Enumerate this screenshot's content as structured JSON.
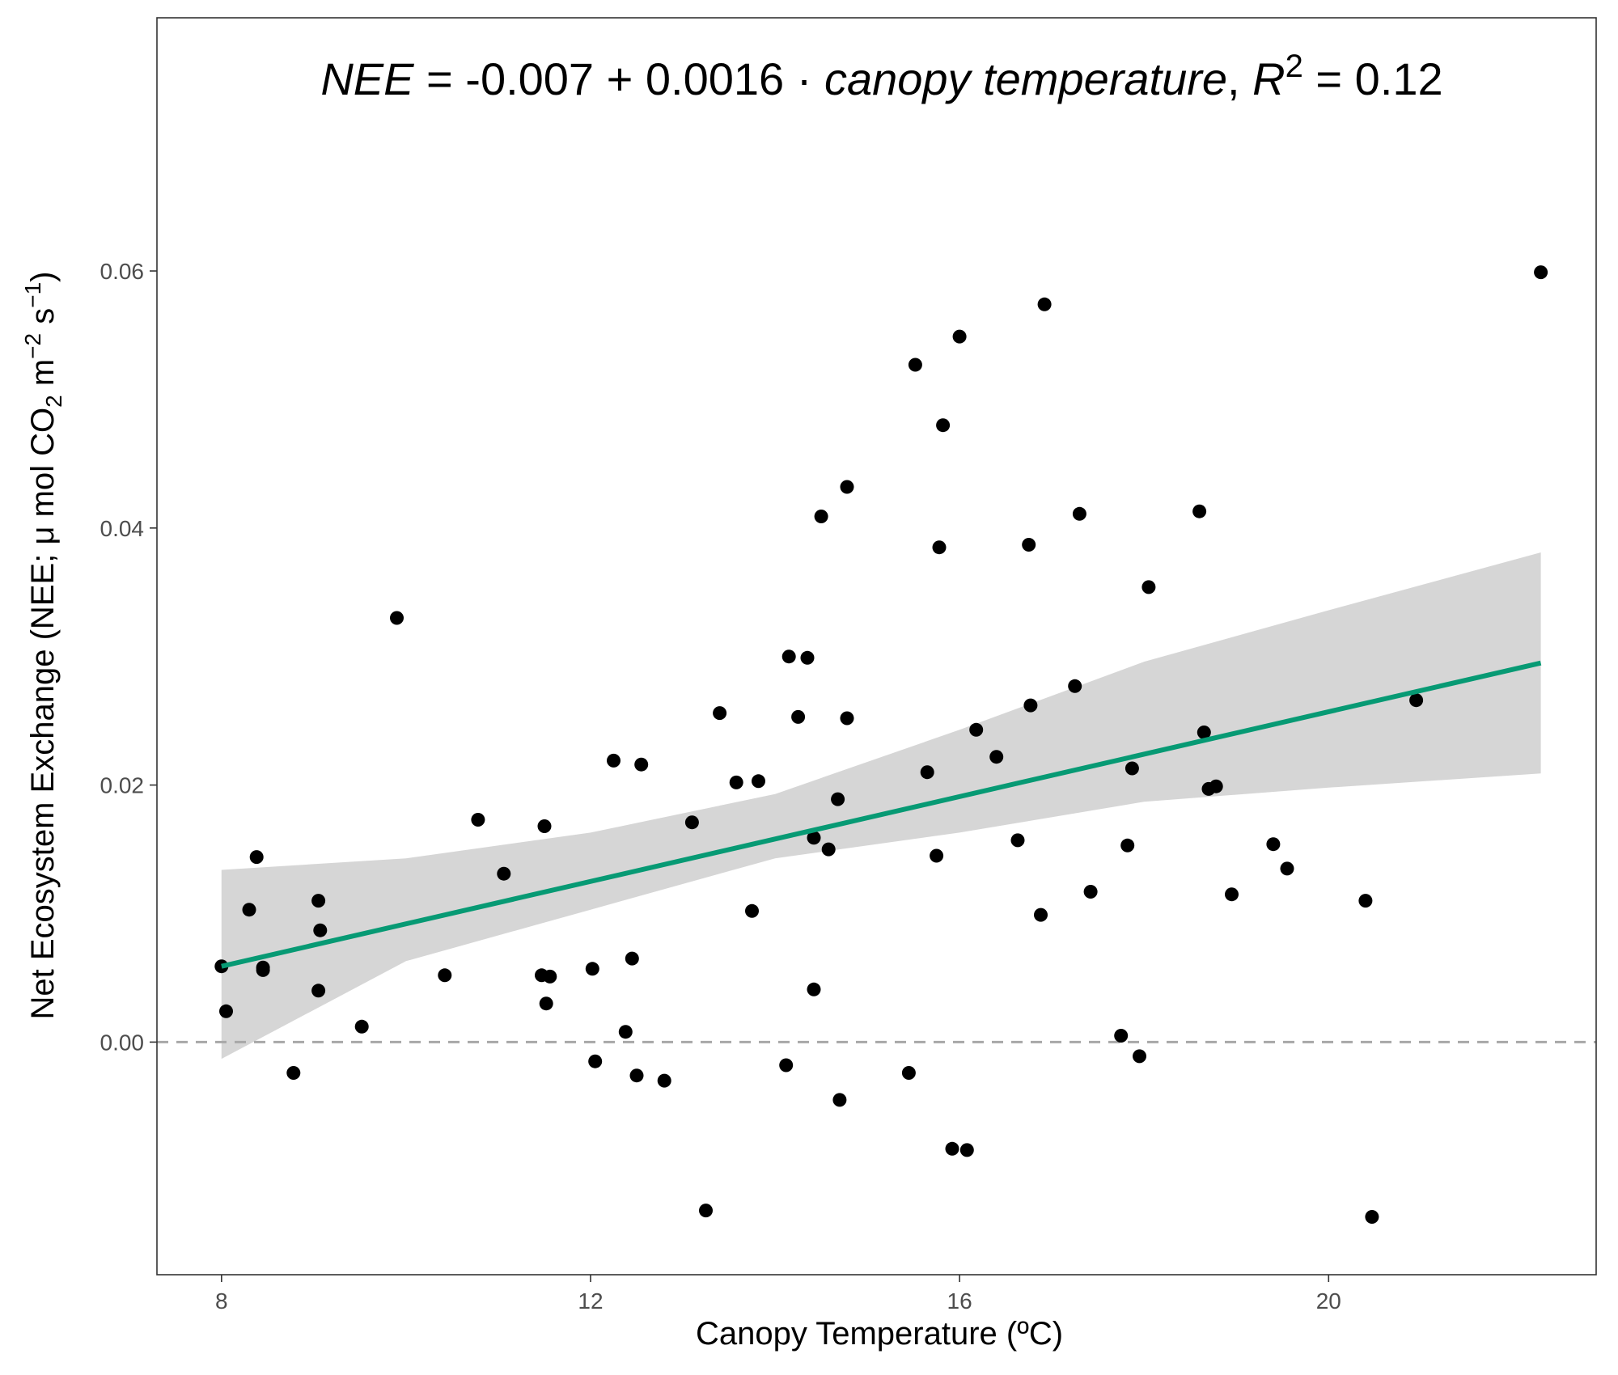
{
  "chart_data": {
    "type": "scatter",
    "annotation": {
      "nee": "NEE",
      "eq": " = -0.007 + 0.0016 · ",
      "canopy": "canopy temperature",
      "sep": ",  ",
      "r": "R",
      "r_sup": "2",
      "r_val": " = 0.12"
    },
    "xlabel": "Canopy Temperature (ºC)",
    "ylabel": {
      "main": "Net Ecosystem Exchange (NEE; μ mol CO",
      "sub2": "2",
      "m": " m",
      "sup_m2": "−2",
      "s": " s",
      "sup_m1": "−1",
      "close": ")"
    },
    "xlim": [
      7.3,
      22.9
    ],
    "ylim": [
      -0.0181,
      0.0797
    ],
    "x_ticks": [
      8,
      12,
      16,
      20
    ],
    "x_tick_labels": [
      "8",
      "12",
      "16",
      "20"
    ],
    "y_ticks": [
      0.0,
      0.02,
      0.04,
      0.06
    ],
    "y_tick_labels": [
      "0.00",
      "0.02",
      "0.04",
      "0.06"
    ],
    "grid": false,
    "reference_line": {
      "y": 0.0,
      "style": "dashed",
      "color": "#a8a8a8"
    },
    "fit": {
      "x_range": [
        8.0,
        22.3
      ],
      "line": [
        [
          8.0,
          0.0059
        ],
        [
          22.3,
          0.0295
        ]
      ],
      "ci_upper": [
        [
          8.0,
          0.0134
        ],
        [
          10.0,
          0.0143
        ],
        [
          12.0,
          0.0163
        ],
        [
          14.0,
          0.0193
        ],
        [
          16.0,
          0.0243
        ],
        [
          18.0,
          0.0296
        ],
        [
          20.0,
          0.0336
        ],
        [
          22.3,
          0.0381
        ]
      ],
      "ci_lower": [
        [
          8.0,
          -0.0013
        ],
        [
          10.0,
          0.0063
        ],
        [
          12.0,
          0.0103
        ],
        [
          14.0,
          0.0143
        ],
        [
          16.0,
          0.0163
        ],
        [
          18.0,
          0.0187
        ],
        [
          20.0,
          0.0198
        ],
        [
          22.3,
          0.0209
        ]
      ],
      "line_color": "#079a74",
      "band_color": "#d6d6d6"
    },
    "point_color": "#000000",
    "points": [
      [
        8.0,
        0.0059
      ],
      [
        8.05,
        0.0024
      ],
      [
        8.3,
        0.0103
      ],
      [
        8.38,
        0.0144
      ],
      [
        8.45,
        0.0058
      ],
      [
        8.45,
        0.0056
      ],
      [
        8.78,
        -0.0024
      ],
      [
        9.05,
        0.011
      ],
      [
        9.07,
        0.0087
      ],
      [
        9.05,
        0.004
      ],
      [
        9.52,
        0.0012
      ],
      [
        9.9,
        0.033
      ],
      [
        10.42,
        0.0052
      ],
      [
        10.78,
        0.0173
      ],
      [
        11.06,
        0.0131
      ],
      [
        11.47,
        0.0052
      ],
      [
        11.5,
        0.0168
      ],
      [
        11.52,
        0.003
      ],
      [
        11.56,
        0.0051
      ],
      [
        12.02,
        0.0057
      ],
      [
        12.05,
        -0.0015
      ],
      [
        12.25,
        0.0219
      ],
      [
        12.38,
        0.0008
      ],
      [
        12.45,
        0.0065
      ],
      [
        12.5,
        -0.0026
      ],
      [
        12.55,
        0.0216
      ],
      [
        12.8,
        -0.003
      ],
      [
        13.1,
        0.0171
      ],
      [
        13.25,
        -0.0131
      ],
      [
        13.4,
        0.0256
      ],
      [
        13.58,
        0.0202
      ],
      [
        13.75,
        0.0102
      ],
      [
        13.82,
        0.0203
      ],
      [
        14.12,
        -0.0018
      ],
      [
        14.15,
        0.03
      ],
      [
        14.25,
        0.0253
      ],
      [
        14.35,
        0.0299
      ],
      [
        14.42,
        0.0159
      ],
      [
        14.42,
        0.0041
      ],
      [
        14.5,
        0.0409
      ],
      [
        14.58,
        0.015
      ],
      [
        14.68,
        0.0189
      ],
      [
        14.7,
        -0.0045
      ],
      [
        14.78,
        0.0432
      ],
      [
        14.78,
        0.0252
      ],
      [
        15.45,
        -0.0024
      ],
      [
        15.52,
        0.0527
      ],
      [
        15.65,
        0.021
      ],
      [
        15.75,
        0.0145
      ],
      [
        15.78,
        0.0385
      ],
      [
        15.82,
        0.048
      ],
      [
        15.92,
        -0.0083
      ],
      [
        16.0,
        0.0549
      ],
      [
        16.08,
        -0.0084
      ],
      [
        16.18,
        0.0243
      ],
      [
        16.4,
        0.0222
      ],
      [
        16.63,
        0.0157
      ],
      [
        16.75,
        0.0387
      ],
      [
        16.77,
        0.0262
      ],
      [
        16.88,
        0.0099
      ],
      [
        16.92,
        0.0574
      ],
      [
        17.25,
        0.0277
      ],
      [
        17.3,
        0.0411
      ],
      [
        17.42,
        0.0117
      ],
      [
        17.75,
        0.0005
      ],
      [
        17.82,
        0.0153
      ],
      [
        17.87,
        0.0213
      ],
      [
        17.95,
        -0.0011
      ],
      [
        18.05,
        0.0354
      ],
      [
        18.6,
        0.0413
      ],
      [
        18.65,
        0.0241
      ],
      [
        18.7,
        0.0197
      ],
      [
        18.78,
        0.0199
      ],
      [
        18.95,
        0.0115
      ],
      [
        19.4,
        0.0154
      ],
      [
        19.55,
        0.0135
      ],
      [
        20.4,
        0.011
      ],
      [
        20.47,
        -0.0136
      ],
      [
        20.95,
        0.0266
      ],
      [
        22.3,
        0.0599
      ]
    ]
  }
}
